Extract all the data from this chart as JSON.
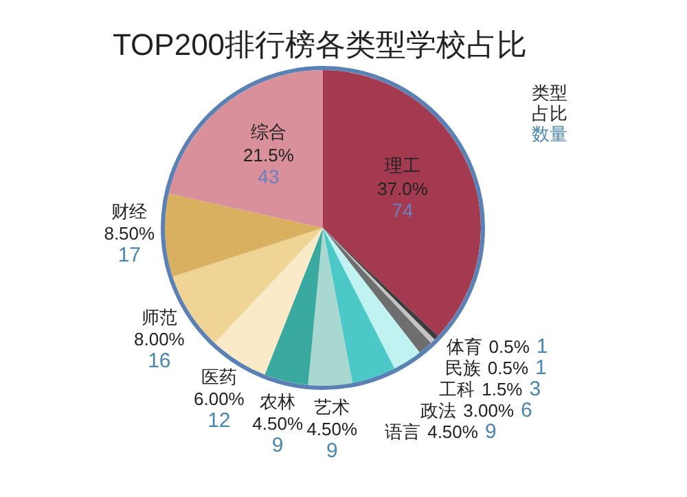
{
  "chart_data": {
    "type": "pie",
    "title": "TOP200排行榜各类型学校占比",
    "categories": [
      "理工",
      "体育",
      "民族",
      "工科",
      "政法",
      "语言",
      "艺术",
      "农林",
      "医药",
      "师范",
      "财经",
      "综合"
    ],
    "values": [
      37.0,
      0.5,
      0.5,
      1.5,
      3.0,
      4.5,
      4.5,
      4.5,
      6.0,
      8.0,
      8.5,
      21.5
    ],
    "value_labels": [
      "37.0%",
      "0.5%",
      "0.5%",
      "1.5%",
      "3.00%",
      "4.50%",
      "4.50%",
      "4.50%",
      "6.00%",
      "8.00%",
      "8.50%",
      "21.5%"
    ],
    "colors": [
      "#a33a50",
      "#3c3c3c",
      "#c4c4c4",
      "#6e6e6e",
      "#c0f2f2",
      "#4cc8c8",
      "#a8d8d0",
      "#3aaaa0",
      "#faeac8",
      "#f0d496",
      "#d8b060",
      "#d9909a"
    ],
    "annotations": [
      "类型",
      "占比",
      "数量",
      {
        "text": "74",
        "x": "理工"
      },
      {
        "text": "1",
        "x": "体育"
      },
      {
        "text": "1",
        "x": "民族"
      },
      {
        "text": "3",
        "x": "工科"
      },
      {
        "text": "6",
        "x": "政法"
      },
      {
        "text": "9",
        "x": "语言"
      },
      {
        "text": "9",
        "x": "艺术"
      },
      {
        "text": "9",
        "x": "农林"
      },
      {
        "text": "12",
        "x": "医药"
      },
      {
        "text": "16",
        "x": "师范"
      },
      {
        "text": "17",
        "x": "财经"
      },
      {
        "text": "43",
        "x": "综合"
      }
    ]
  }
}
